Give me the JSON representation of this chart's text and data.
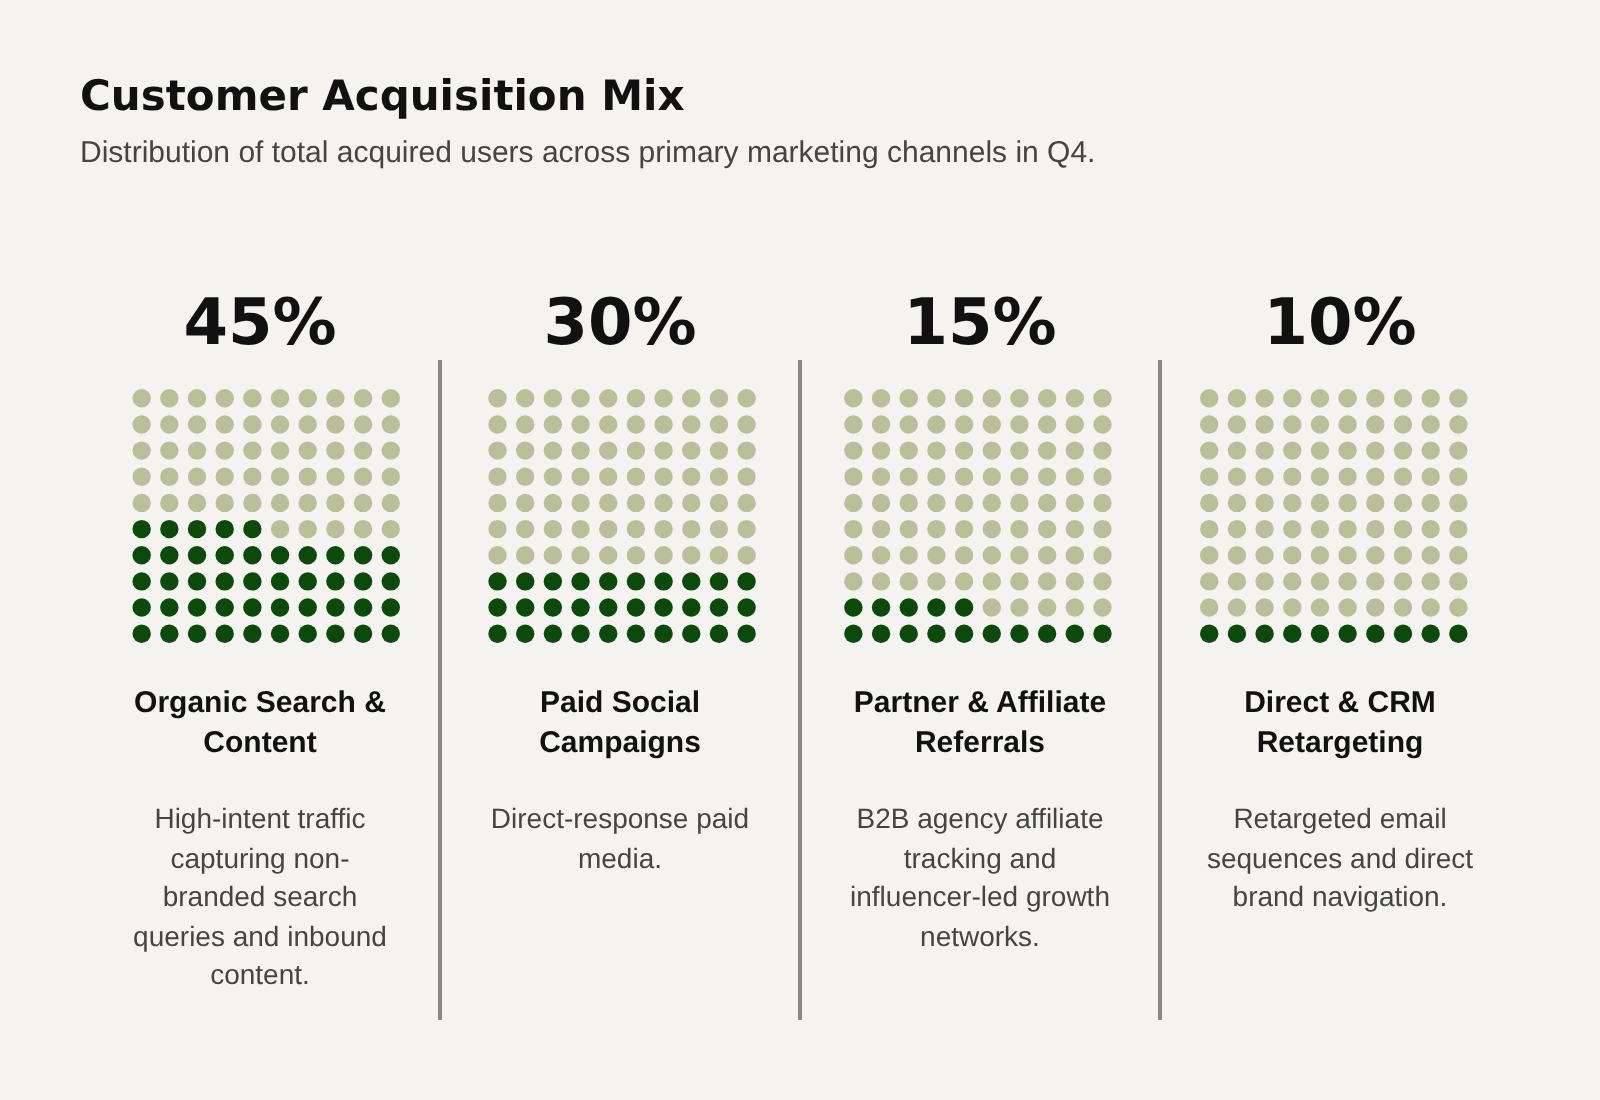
{
  "chart_data": {
    "type": "other",
    "title": "Customer Acquisition Mix",
    "subtitle": "Distribution of total acquired users across primary marketing channels in Q4.",
    "categories": [
      "Organic Search & Content",
      "Paid Social Campaigns",
      "Partner & Affiliate Referrals",
      "Direct & CRM Retargeting"
    ],
    "values": [
      45,
      30,
      15,
      10
    ],
    "value_labels": [
      "45%",
      "30%",
      "15%",
      "10%"
    ],
    "color": "#0b4a0b",
    "annotations": [
      "High-intent traffic capturing non-branded search queries and inbound content.",
      "Direct-response paid media.",
      "B2B agency affiliate tracking and influencer-led growth networks.",
      "Retargeted email sequences and direct brand navigation."
    ]
  }
}
